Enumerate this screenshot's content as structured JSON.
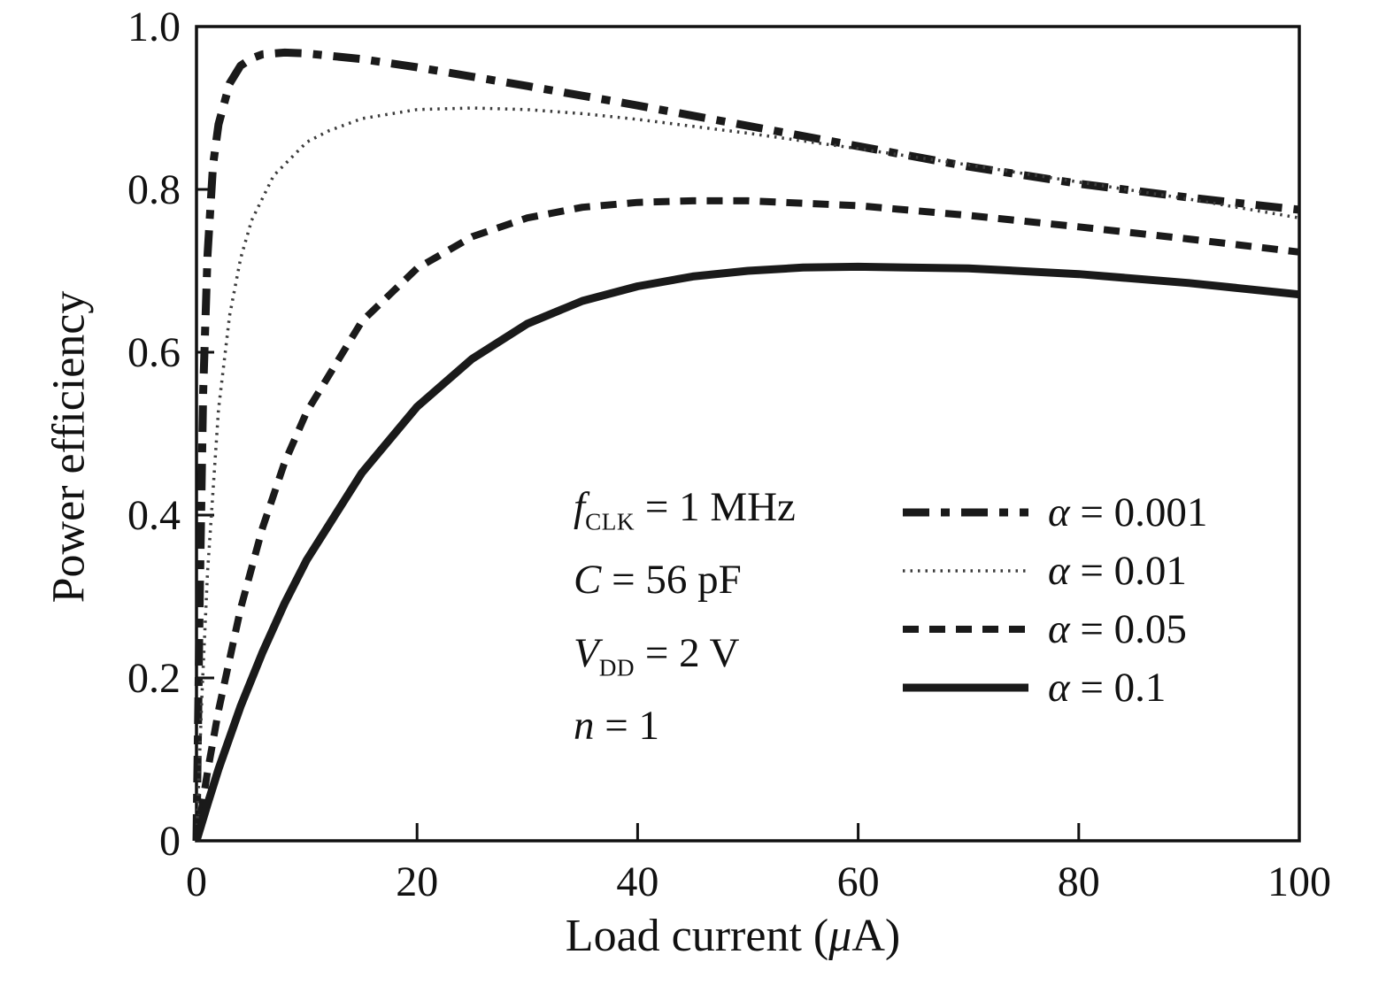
{
  "chart_data": {
    "type": "line",
    "title": "",
    "xlabel": "Load current (μA)",
    "ylabel": "Power efficiency",
    "xlim": [
      0,
      100
    ],
    "ylim": [
      0,
      1.0
    ],
    "grid": false,
    "legend_position": "center-right",
    "xticks": [
      0,
      20,
      40,
      60,
      80,
      100
    ],
    "yticks": [
      0,
      0.2,
      0.4,
      0.6,
      0.8,
      1.0
    ],
    "xticklabels": [
      "0",
      "20",
      "40",
      "60",
      "80",
      "100"
    ],
    "yticklabels": [
      "0",
      "0.2",
      "0.4",
      "0.6",
      "0.8",
      "1.0"
    ],
    "series": [
      {
        "name": "α = 0.001",
        "style": "dashdot",
        "x": [
          0,
          0.3,
          0.6,
          1,
          1.5,
          2,
          3,
          4,
          5,
          6,
          8,
          10,
          15,
          20,
          30,
          40,
          50,
          60,
          70,
          80,
          90,
          100
        ],
        "y": [
          0,
          0.3,
          0.55,
          0.72,
          0.83,
          0.88,
          0.93,
          0.952,
          0.961,
          0.966,
          0.968,
          0.967,
          0.96,
          0.95,
          0.927,
          0.903,
          0.878,
          0.853,
          0.828,
          0.807,
          0.79,
          0.775
        ]
      },
      {
        "name": "α = 0.01",
        "style": "dotted",
        "x": [
          0,
          0.5,
          1,
          2,
          3,
          4,
          5,
          7,
          10,
          12,
          15,
          20,
          25,
          30,
          35,
          40,
          50,
          60,
          70,
          80,
          90,
          100
        ],
        "y": [
          0,
          0.18,
          0.33,
          0.53,
          0.645,
          0.715,
          0.762,
          0.817,
          0.858,
          0.872,
          0.887,
          0.898,
          0.9,
          0.898,
          0.893,
          0.886,
          0.869,
          0.85,
          0.83,
          0.809,
          0.788,
          0.765
        ]
      },
      {
        "name": "α = 0.05",
        "style": "dashed",
        "x": [
          0,
          1,
          2,
          4,
          6,
          8,
          10,
          15,
          20,
          25,
          30,
          35,
          40,
          45,
          50,
          60,
          70,
          80,
          90,
          100
        ],
        "y": [
          0,
          0.085,
          0.16,
          0.285,
          0.385,
          0.465,
          0.527,
          0.638,
          0.703,
          0.742,
          0.765,
          0.778,
          0.784,
          0.786,
          0.786,
          0.78,
          0.768,
          0.754,
          0.739,
          0.723
        ]
      },
      {
        "name": "α = 0.1",
        "style": "solid",
        "x": [
          0,
          1,
          2,
          4,
          6,
          8,
          10,
          15,
          20,
          25,
          30,
          35,
          40,
          45,
          50,
          55,
          60,
          70,
          80,
          90,
          100
        ],
        "y": [
          0,
          0.045,
          0.088,
          0.165,
          0.232,
          0.292,
          0.345,
          0.452,
          0.533,
          0.592,
          0.635,
          0.663,
          0.681,
          0.693,
          0.7,
          0.704,
          0.705,
          0.703,
          0.696,
          0.685,
          0.671
        ]
      }
    ]
  },
  "axes": {
    "ylabel": "Power efficiency",
    "xlabel_pre": "Load current (",
    "xlabel_mu": "μ",
    "xlabel_post": "A)"
  },
  "annotations": [
    {
      "var": "f",
      "sub": "CLK",
      "rest": " = 1 MHz"
    },
    {
      "var": "C",
      "sub": "",
      "rest": " = 56 pF"
    },
    {
      "var": "V",
      "sub": "DD",
      "rest": " = 2 V"
    },
    {
      "var": "n",
      "sub": "",
      "rest": " = 1"
    }
  ],
  "legend": {
    "items": [
      {
        "symbol": "α",
        "value": " = 0.001",
        "style": "dashdot"
      },
      {
        "symbol": "α",
        "value": " = 0.01",
        "style": "dotted"
      },
      {
        "symbol": "α",
        "value": " = 0.05",
        "style": "dashed"
      },
      {
        "symbol": "α",
        "value": " = 0.1",
        "style": "solid"
      }
    ]
  },
  "colors": {
    "line": "#1a1a1a",
    "dotted_line": "#3c3c3c",
    "frame": "#111111"
  }
}
